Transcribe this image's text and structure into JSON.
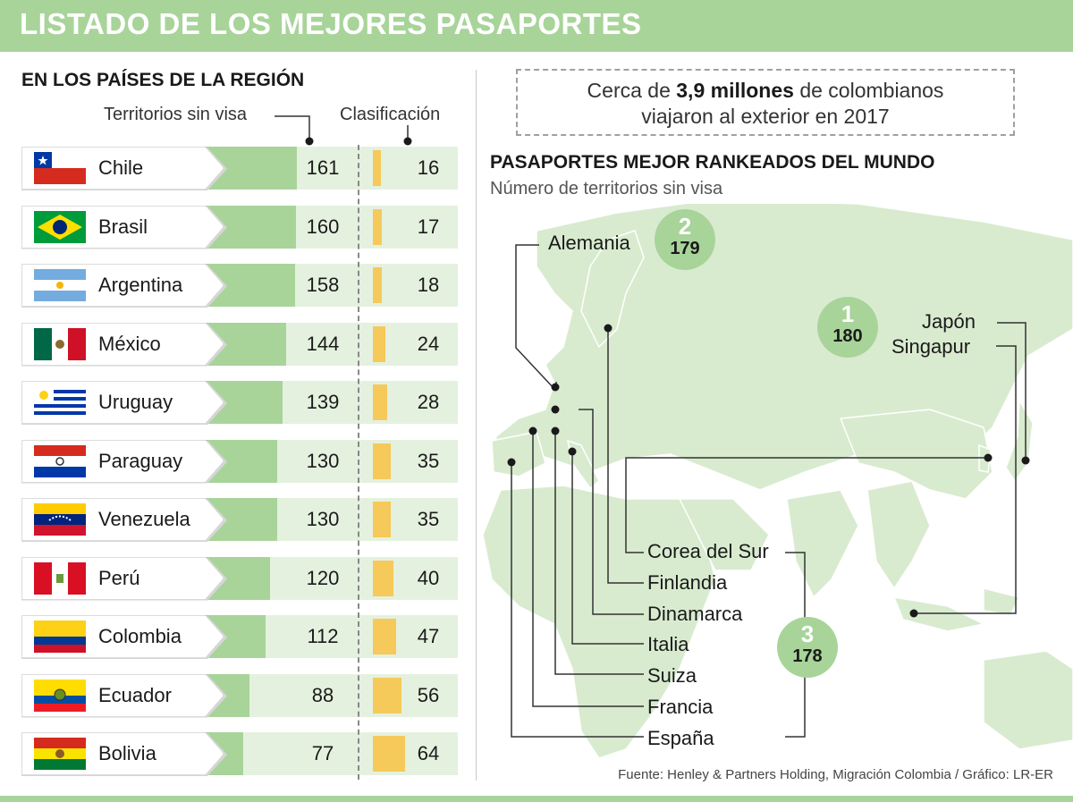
{
  "title": "LISTADO DE LOS MEJORES PASAPORTES",
  "region_section": {
    "title": "EN LOS PAÍSES DE LA REGIÓN",
    "col_visa": "Territorios sin visa",
    "col_rank": "Clasificación"
  },
  "world_section": {
    "callout_pre": "Cerca de ",
    "callout_bold": "3,9 millones",
    "callout_post": " de colombianos",
    "callout_line2": "viajaron al exterior en 2017",
    "title": "PASAPORTES MEJOR RANKEADOS DEL MUNDO",
    "subtitle": "Número de territorios sin visa",
    "labels": {
      "alemania": "Alemania",
      "japon": "Japón",
      "singapur": "Singapur",
      "corea": "Corea del Sur",
      "finlandia": "Finlandia",
      "dinamarca": "Dinamarca",
      "italia": "Italia",
      "suiza": "Suiza",
      "francia": "Francia",
      "espana": "España"
    },
    "badges": [
      {
        "rank": "1",
        "visa_free": "180"
      },
      {
        "rank": "2",
        "visa_free": "179"
      },
      {
        "rank": "3",
        "visa_free": "178"
      }
    ]
  },
  "source": "Fuente: Henley & Partners Holding, Migración Colombia / Gráfico: LR-ER",
  "chart_data": {
    "type": "bar",
    "title": "EN LOS PAÍSES DE LA REGIÓN",
    "categories": [
      "Chile",
      "Brasil",
      "Argentina",
      "México",
      "Uruguay",
      "Paraguay",
      "Venezuela",
      "Perú",
      "Colombia",
      "Ecuador",
      "Bolivia"
    ],
    "series": [
      {
        "name": "Territorios sin visa",
        "values": [
          161,
          160,
          158,
          144,
          139,
          130,
          130,
          120,
          112,
          88,
          77
        ]
      },
      {
        "name": "Clasificación",
        "values": [
          16,
          17,
          18,
          24,
          28,
          35,
          35,
          40,
          47,
          56,
          64
        ]
      }
    ],
    "flags": [
      "chile",
      "brasil",
      "argentina",
      "mexico",
      "uruguay",
      "paraguay",
      "venezuela",
      "peru",
      "colombia",
      "ecuador",
      "bolivia"
    ],
    "colors": {
      "visa_bar": "#a8d49a",
      "rank_bar": "#f5c95a",
      "row_bg": "#e5f1df"
    }
  }
}
